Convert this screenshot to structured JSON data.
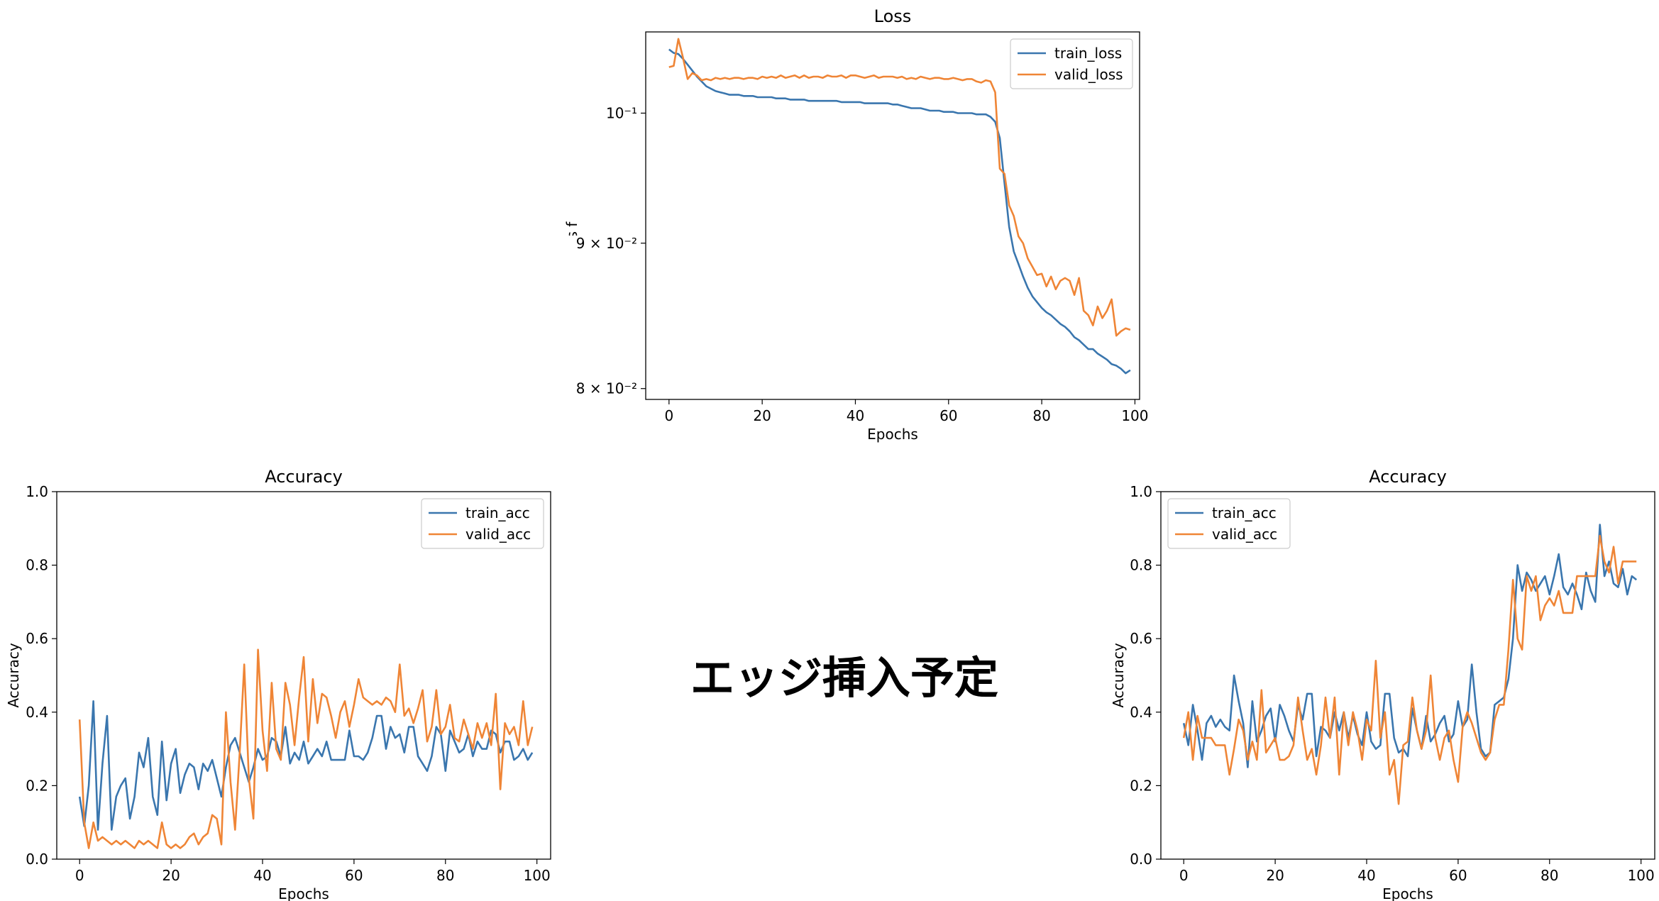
{
  "center_note": "エッジ挿入予定",
  "colors": {
    "train": "#3a76ae",
    "valid": "#ef8536",
    "axis": "#000000"
  },
  "chart_data": [
    {
      "id": "loss",
      "type": "line",
      "title": "Loss",
      "xlabel": "Epochs",
      "ylabel": "Loss function",
      "yscale": "log",
      "xlim": [
        -5,
        101
      ],
      "ylim": [
        0.0793,
        0.1068
      ],
      "xticks": [
        0,
        20,
        40,
        60,
        80,
        100
      ],
      "xtick_labels": [
        "0",
        "20",
        "40",
        "60",
        "80",
        "100"
      ],
      "yticks": [
        0.08,
        0.09,
        0.1
      ],
      "ytick_labels": [
        "8 × 10⁻²",
        "9 × 10⁻²",
        "10⁻¹"
      ],
      "legend": "top-right",
      "grid": false,
      "series": [
        {
          "name": "train_loss",
          "color": "#3a76ae",
          "x_start": 0,
          "values": [
            0.1053,
            0.105,
            0.1049,
            0.1045,
            0.104,
            0.1035,
            0.103,
            0.1026,
            0.1022,
            0.102,
            0.1018,
            0.1017,
            0.1016,
            0.1015,
            0.1015,
            0.1015,
            0.1014,
            0.1014,
            0.1014,
            0.1013,
            0.1013,
            0.1013,
            0.1013,
            0.1012,
            0.1012,
            0.1012,
            0.1011,
            0.1011,
            0.1011,
            0.1011,
            0.101,
            0.101,
            0.101,
            0.101,
            0.101,
            0.101,
            0.101,
            0.1009,
            0.1009,
            0.1009,
            0.1009,
            0.1009,
            0.1008,
            0.1008,
            0.1008,
            0.1008,
            0.1008,
            0.1008,
            0.1007,
            0.1007,
            0.1006,
            0.1005,
            0.1004,
            0.1004,
            0.1004,
            0.1003,
            0.1002,
            0.1002,
            0.1002,
            0.1001,
            0.1001,
            0.1001,
            0.1,
            0.1,
            0.1,
            0.1,
            0.0999,
            0.0999,
            0.0999,
            0.0997,
            0.0993,
            0.098,
            0.0945,
            0.0912,
            0.0894,
            0.0885,
            0.0876,
            0.0868,
            0.0862,
            0.0858,
            0.0854,
            0.0851,
            0.0849,
            0.0846,
            0.0843,
            0.0841,
            0.0838,
            0.0834,
            0.0832,
            0.0829,
            0.0826,
            0.0826,
            0.0823,
            0.0821,
            0.0819,
            0.0816,
            0.0815,
            0.0813,
            0.081,
            0.0812
          ]
        },
        {
          "name": "valid_loss",
          "color": "#ef8536",
          "x_start": 0,
          "values": [
            0.1038,
            0.1039,
            0.1062,
            0.1046,
            0.1028,
            0.1033,
            0.1031,
            0.1027,
            0.1028,
            0.1027,
            0.1029,
            0.1028,
            0.1029,
            0.1028,
            0.1029,
            0.1029,
            0.1028,
            0.1029,
            0.1029,
            0.1028,
            0.103,
            0.1029,
            0.103,
            0.1029,
            0.1031,
            0.1029,
            0.103,
            0.1031,
            0.1029,
            0.1031,
            0.1029,
            0.103,
            0.103,
            0.1029,
            0.1031,
            0.103,
            0.103,
            0.1031,
            0.1029,
            0.1031,
            0.1031,
            0.103,
            0.1029,
            0.103,
            0.1031,
            0.1029,
            0.103,
            0.103,
            0.103,
            0.1029,
            0.103,
            0.1028,
            0.1029,
            0.1028,
            0.103,
            0.1029,
            0.1028,
            0.1029,
            0.1029,
            0.1028,
            0.1028,
            0.1029,
            0.1028,
            0.1027,
            0.1028,
            0.1028,
            0.1026,
            0.1025,
            0.1027,
            0.1026,
            0.1017,
            0.0956,
            0.0952,
            0.0928,
            0.092,
            0.0905,
            0.09,
            0.0889,
            0.0883,
            0.0877,
            0.0878,
            0.0869,
            0.0876,
            0.0867,
            0.0873,
            0.0875,
            0.0873,
            0.0863,
            0.0875,
            0.0852,
            0.0849,
            0.0842,
            0.0855,
            0.0847,
            0.0852,
            0.086,
            0.0835,
            0.0838,
            0.084,
            0.0839
          ]
        }
      ]
    },
    {
      "id": "acc-left",
      "type": "line",
      "title": "Accuracy",
      "xlabel": "Epochs",
      "ylabel": "Accuracy",
      "yscale": "linear",
      "xlim": [
        -5,
        103
      ],
      "ylim": [
        0,
        1
      ],
      "xticks": [
        0,
        20,
        40,
        60,
        80,
        100
      ],
      "xtick_labels": [
        "0",
        "20",
        "40",
        "60",
        "80",
        "100"
      ],
      "yticks": [
        0,
        0.2,
        0.4,
        0.6,
        0.8,
        1.0
      ],
      "ytick_labels": [
        "0.0",
        "0.2",
        "0.4",
        "0.6",
        "0.8",
        "1.0"
      ],
      "legend": "top-right",
      "grid": false,
      "series": [
        {
          "name": "train_acc",
          "color": "#3a76ae",
          "x_start": 0,
          "values": [
            0.17,
            0.09,
            0.2,
            0.43,
            0.08,
            0.26,
            0.39,
            0.08,
            0.17,
            0.2,
            0.22,
            0.11,
            0.17,
            0.29,
            0.25,
            0.33,
            0.17,
            0.12,
            0.32,
            0.16,
            0.26,
            0.3,
            0.18,
            0.23,
            0.26,
            0.25,
            0.19,
            0.26,
            0.24,
            0.27,
            0.22,
            0.17,
            0.25,
            0.31,
            0.33,
            0.29,
            0.25,
            0.21,
            0.25,
            0.3,
            0.27,
            0.28,
            0.33,
            0.32,
            0.28,
            0.36,
            0.26,
            0.29,
            0.27,
            0.32,
            0.26,
            0.28,
            0.3,
            0.28,
            0.32,
            0.27,
            0.27,
            0.27,
            0.27,
            0.35,
            0.28,
            0.28,
            0.27,
            0.29,
            0.33,
            0.39,
            0.39,
            0.3,
            0.36,
            0.33,
            0.34,
            0.29,
            0.36,
            0.36,
            0.28,
            0.26,
            0.24,
            0.28,
            0.36,
            0.34,
            0.24,
            0.35,
            0.32,
            0.29,
            0.3,
            0.34,
            0.28,
            0.32,
            0.3,
            0.3,
            0.35,
            0.34,
            0.29,
            0.32,
            0.32,
            0.27,
            0.28,
            0.3,
            0.27,
            0.29
          ]
        },
        {
          "name": "valid_acc",
          "color": "#ef8536",
          "x_start": 0,
          "values": [
            0.38,
            0.1,
            0.03,
            0.1,
            0.05,
            0.06,
            0.05,
            0.04,
            0.05,
            0.04,
            0.05,
            0.04,
            0.03,
            0.05,
            0.04,
            0.05,
            0.04,
            0.03,
            0.1,
            0.04,
            0.03,
            0.04,
            0.03,
            0.04,
            0.06,
            0.07,
            0.04,
            0.06,
            0.07,
            0.12,
            0.11,
            0.04,
            0.4,
            0.21,
            0.08,
            0.29,
            0.53,
            0.22,
            0.11,
            0.57,
            0.35,
            0.24,
            0.48,
            0.3,
            0.27,
            0.48,
            0.42,
            0.31,
            0.44,
            0.55,
            0.32,
            0.49,
            0.37,
            0.45,
            0.44,
            0.39,
            0.33,
            0.4,
            0.43,
            0.36,
            0.42,
            0.49,
            0.44,
            0.43,
            0.42,
            0.43,
            0.42,
            0.44,
            0.43,
            0.4,
            0.53,
            0.39,
            0.41,
            0.37,
            0.41,
            0.46,
            0.32,
            0.36,
            0.46,
            0.34,
            0.36,
            0.42,
            0.33,
            0.32,
            0.38,
            0.34,
            0.3,
            0.37,
            0.33,
            0.37,
            0.31,
            0.45,
            0.19,
            0.37,
            0.34,
            0.36,
            0.31,
            0.43,
            0.31,
            0.36
          ]
        }
      ]
    },
    {
      "id": "acc-right",
      "type": "line",
      "title": "Accuracy",
      "xlabel": "Epochs",
      "ylabel": "Accuracy",
      "yscale": "linear",
      "xlim": [
        -5,
        103
      ],
      "ylim": [
        0,
        1
      ],
      "xticks": [
        0,
        20,
        40,
        60,
        80,
        100
      ],
      "xtick_labels": [
        "0",
        "20",
        "40",
        "60",
        "80",
        "100"
      ],
      "yticks": [
        0,
        0.2,
        0.4,
        0.6,
        0.8,
        1.0
      ],
      "ytick_labels": [
        "0.0",
        "0.2",
        "0.4",
        "0.6",
        "0.8",
        "1.0"
      ],
      "legend": "top-left",
      "grid": false,
      "series": [
        {
          "name": "train_acc",
          "color": "#3a76ae",
          "x_start": 0,
          "values": [
            0.37,
            0.31,
            0.42,
            0.35,
            0.27,
            0.37,
            0.39,
            0.36,
            0.38,
            0.36,
            0.35,
            0.5,
            0.43,
            0.37,
            0.25,
            0.43,
            0.32,
            0.35,
            0.39,
            0.41,
            0.32,
            0.42,
            0.39,
            0.35,
            0.32,
            0.42,
            0.38,
            0.45,
            0.45,
            0.28,
            0.36,
            0.35,
            0.33,
            0.4,
            0.35,
            0.4,
            0.33,
            0.39,
            0.34,
            0.31,
            0.4,
            0.32,
            0.3,
            0.31,
            0.45,
            0.45,
            0.33,
            0.29,
            0.3,
            0.28,
            0.41,
            0.35,
            0.3,
            0.39,
            0.32,
            0.34,
            0.37,
            0.39,
            0.32,
            0.34,
            0.43,
            0.36,
            0.38,
            0.53,
            0.4,
            0.3,
            0.28,
            0.29,
            0.42,
            0.43,
            0.44,
            0.49,
            0.6,
            0.8,
            0.73,
            0.78,
            0.76,
            0.73,
            0.75,
            0.77,
            0.72,
            0.77,
            0.83,
            0.74,
            0.72,
            0.75,
            0.72,
            0.68,
            0.78,
            0.73,
            0.7,
            0.91,
            0.77,
            0.81,
            0.75,
            0.74,
            0.79,
            0.72,
            0.77,
            0.76
          ]
        },
        {
          "name": "valid_acc",
          "color": "#ef8536",
          "x_start": 0,
          "values": [
            0.33,
            0.4,
            0.27,
            0.39,
            0.33,
            0.33,
            0.33,
            0.31,
            0.31,
            0.31,
            0.23,
            0.3,
            0.38,
            0.35,
            0.27,
            0.32,
            0.27,
            0.46,
            0.29,
            0.31,
            0.33,
            0.27,
            0.27,
            0.28,
            0.31,
            0.44,
            0.35,
            0.27,
            0.3,
            0.23,
            0.31,
            0.44,
            0.33,
            0.44,
            0.23,
            0.4,
            0.31,
            0.4,
            0.35,
            0.27,
            0.38,
            0.35,
            0.54,
            0.33,
            0.4,
            0.23,
            0.27,
            0.15,
            0.31,
            0.32,
            0.44,
            0.35,
            0.3,
            0.35,
            0.5,
            0.33,
            0.27,
            0.33,
            0.35,
            0.27,
            0.21,
            0.36,
            0.4,
            0.37,
            0.33,
            0.29,
            0.27,
            0.29,
            0.38,
            0.42,
            0.42,
            0.57,
            0.76,
            0.6,
            0.57,
            0.77,
            0.73,
            0.77,
            0.65,
            0.69,
            0.71,
            0.69,
            0.73,
            0.67,
            0.67,
            0.67,
            0.77,
            0.77,
            0.77,
            0.77,
            0.77,
            0.88,
            0.81,
            0.78,
            0.85,
            0.75,
            0.81,
            0.81,
            0.81,
            0.81
          ]
        }
      ]
    }
  ]
}
